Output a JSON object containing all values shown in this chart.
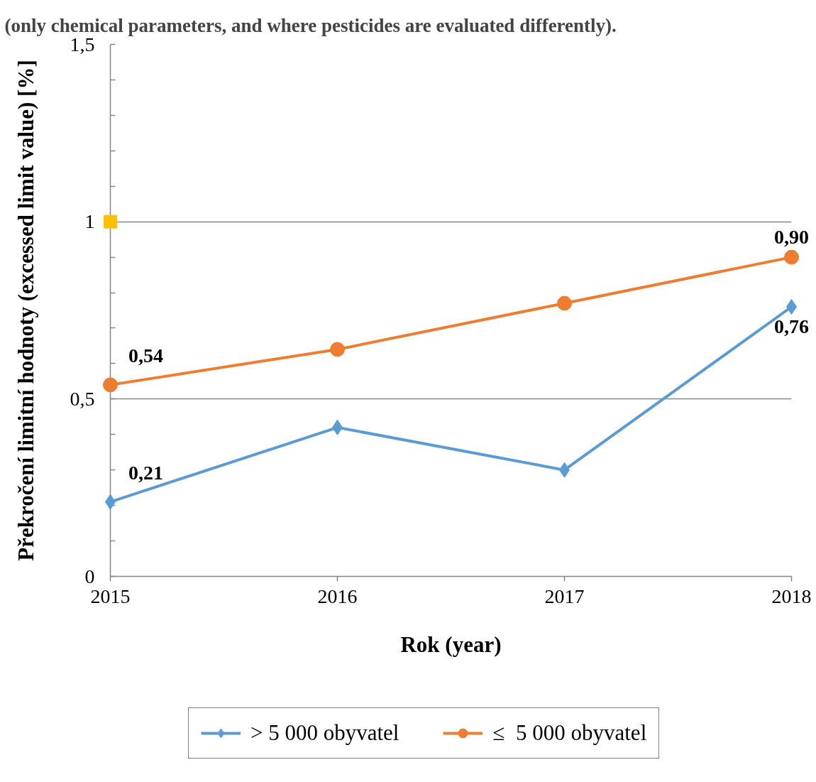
{
  "chart_data": {
    "type": "line",
    "title": "(only chemical parameters, and where  pesticides are evaluated differently).",
    "xlabel": "Rok (year)",
    "ylabel": "Překročení limitní hodnoty (excessed limit value) [%]",
    "x": [
      2015,
      2016,
      2017,
      2018
    ],
    "xlim": [
      2015,
      2018
    ],
    "xticks": [
      2015,
      2016,
      2017,
      2018
    ],
    "ylim": [
      0,
      1.5
    ],
    "yticks": [
      0,
      {
        "value": 0.1,
        "label": null
      },
      {
        "value": 0.2,
        "label": null
      },
      {
        "value": 0.3,
        "label": null
      },
      {
        "value": 0.4,
        "label": null
      },
      {
        "value": 0.5,
        "label": "0,5"
      },
      {
        "value": 0.6,
        "label": null
      },
      {
        "value": 0.7,
        "label": null
      },
      {
        "value": 0.8,
        "label": null
      },
      {
        "value": 0.9,
        "label": null
      },
      1,
      {
        "value": 1.1,
        "label": null
      },
      {
        "value": 1.2,
        "label": null
      },
      {
        "value": 1.3,
        "label": null
      },
      {
        "value": 1.4,
        "label": null
      },
      {
        "value": 1.5,
        "label": "1,5"
      }
    ],
    "grid": "y",
    "legend": "bottom",
    "series": [
      {
        "name": "> 5 000 obyvatel",
        "color": "#5b9bd5",
        "marker": "diamond",
        "values": [
          0.21,
          0.42,
          0.3,
          0.76
        ],
        "value_labels": [
          "0,21",
          null,
          null,
          "0,76"
        ]
      },
      {
        "name": "≤  5 000 obyvatel",
        "color": "#ed7d31",
        "marker": "circle",
        "values": [
          0.54,
          0.64,
          0.77,
          0.9
        ],
        "value_labels": [
          "0,54",
          null,
          null,
          "0,90"
        ]
      },
      {
        "type": "scatter",
        "color": "#ffc000",
        "marker": "square",
        "x": [
          2015
        ],
        "values": [
          1
        ]
      }
    ]
  }
}
